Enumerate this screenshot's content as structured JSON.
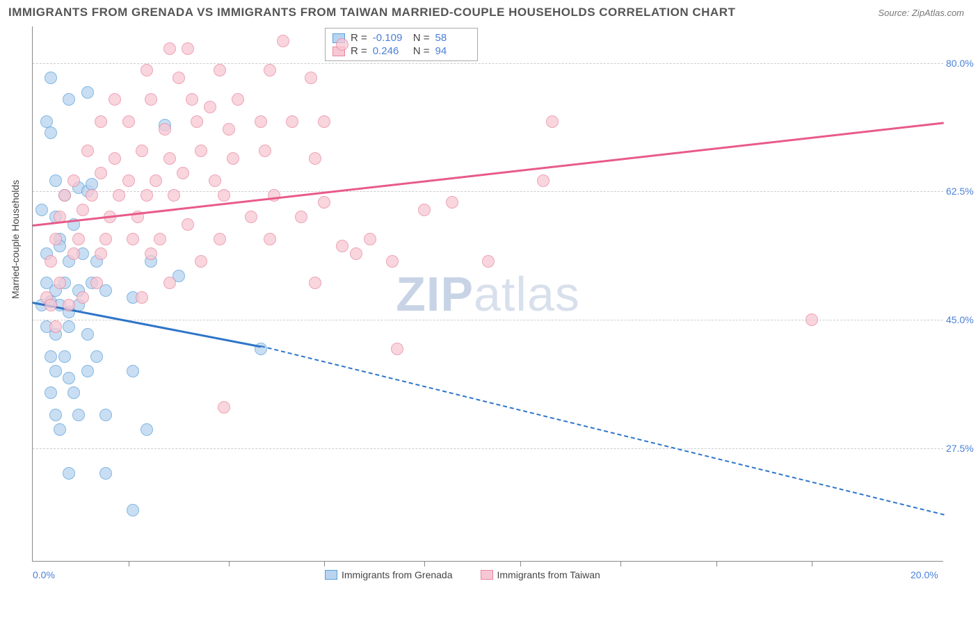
{
  "title": "IMMIGRANTS FROM GRENADA VS IMMIGRANTS FROM TAIWAN MARRIED-COUPLE HOUSEHOLDS CORRELATION CHART",
  "source": "Source: ZipAtlas.com",
  "ylabel": "Married-couple Households",
  "watermark_a": "ZIP",
  "watermark_b": "atlas",
  "chart": {
    "type": "scatter",
    "xlim": [
      0,
      20
    ],
    "ylim": [
      12,
      85
    ],
    "xticks": [
      0,
      20
    ],
    "xtick_labels": [
      "0.0%",
      "20.0%"
    ],
    "minor_xticks": [
      2.1,
      4.3,
      6.4,
      8.6,
      10.7,
      12.9,
      15.0,
      17.1
    ],
    "yticks": [
      27.5,
      45.0,
      62.5,
      80.0
    ],
    "ytick_labels": [
      "27.5%",
      "45.0%",
      "62.5%",
      "80.0%"
    ],
    "grid_color": "#cccccc",
    "background_color": "#ffffff",
    "series": [
      {
        "name": "Immigrants from Grenada",
        "marker_fill": "#b8d4f0",
        "marker_stroke": "#5a9fd8",
        "line_color": "#2e75c8",
        "r_value": "-0.109",
        "n_value": "58",
        "trend": {
          "x1": 0,
          "y1": 47.5,
          "x2": 5.0,
          "y2": 41.5,
          "x2_dash": 20,
          "y2_dash": 18.5
        },
        "points": [
          [
            0.4,
            78
          ],
          [
            0.3,
            72
          ],
          [
            0.4,
            70.5
          ],
          [
            0.8,
            75
          ],
          [
            1.2,
            76
          ],
          [
            2.9,
            71.5
          ],
          [
            0.5,
            64
          ],
          [
            0.7,
            62
          ],
          [
            1.0,
            63
          ],
          [
            1.2,
            62.5
          ],
          [
            1.3,
            63.5
          ],
          [
            0.2,
            60
          ],
          [
            0.5,
            59
          ],
          [
            0.9,
            58
          ],
          [
            0.6,
            56
          ],
          [
            0.3,
            54
          ],
          [
            0.6,
            55
          ],
          [
            0.8,
            53
          ],
          [
            1.1,
            54
          ],
          [
            1.4,
            53
          ],
          [
            2.6,
            53
          ],
          [
            3.2,
            51
          ],
          [
            0.3,
            50
          ],
          [
            0.5,
            49
          ],
          [
            0.7,
            50
          ],
          [
            1.0,
            49
          ],
          [
            1.3,
            50
          ],
          [
            1.6,
            49
          ],
          [
            2.2,
            48
          ],
          [
            0.2,
            47
          ],
          [
            0.4,
            47.5
          ],
          [
            0.6,
            47
          ],
          [
            0.8,
            46
          ],
          [
            1.0,
            47
          ],
          [
            0.3,
            44
          ],
          [
            0.5,
            43
          ],
          [
            0.8,
            44
          ],
          [
            1.2,
            43
          ],
          [
            0.4,
            40
          ],
          [
            0.7,
            40
          ],
          [
            1.4,
            40
          ],
          [
            5.0,
            41
          ],
          [
            0.5,
            38
          ],
          [
            0.8,
            37
          ],
          [
            1.2,
            38
          ],
          [
            2.2,
            38
          ],
          [
            0.4,
            35
          ],
          [
            0.9,
            35
          ],
          [
            0.5,
            32
          ],
          [
            1.0,
            32
          ],
          [
            1.6,
            32
          ],
          [
            0.6,
            30
          ],
          [
            2.5,
            30
          ],
          [
            0.8,
            24
          ],
          [
            1.6,
            24
          ],
          [
            2.2,
            19
          ]
        ]
      },
      {
        "name": "Immigrants from Taiwan",
        "marker_fill": "#f7c8d4",
        "marker_stroke": "#e8869f",
        "line_color": "#e85a8a",
        "r_value": "0.246",
        "n_value": "94",
        "trend": {
          "x1": 0,
          "y1": 58,
          "x2": 20,
          "y2": 72
        },
        "points": [
          [
            3.0,
            82
          ],
          [
            3.4,
            82
          ],
          [
            5.5,
            83
          ],
          [
            6.8,
            82.5
          ],
          [
            2.5,
            79
          ],
          [
            3.2,
            78
          ],
          [
            4.1,
            79
          ],
          [
            5.2,
            79
          ],
          [
            6.1,
            78
          ],
          [
            1.8,
            75
          ],
          [
            2.6,
            75
          ],
          [
            3.5,
            75
          ],
          [
            3.9,
            74
          ],
          [
            4.5,
            75
          ],
          [
            1.5,
            72
          ],
          [
            2.1,
            72
          ],
          [
            2.9,
            71
          ],
          [
            3.6,
            72
          ],
          [
            4.3,
            71
          ],
          [
            5.0,
            72
          ],
          [
            5.7,
            72
          ],
          [
            6.4,
            72
          ],
          [
            11.4,
            72
          ],
          [
            1.2,
            68
          ],
          [
            1.8,
            67
          ],
          [
            2.4,
            68
          ],
          [
            3.0,
            67
          ],
          [
            3.7,
            68
          ],
          [
            4.4,
            67
          ],
          [
            5.1,
            68
          ],
          [
            6.2,
            67
          ],
          [
            0.9,
            64
          ],
          [
            1.5,
            65
          ],
          [
            2.1,
            64
          ],
          [
            2.7,
            64
          ],
          [
            3.3,
            65
          ],
          [
            4.0,
            64
          ],
          [
            11.2,
            64
          ],
          [
            0.7,
            62
          ],
          [
            1.3,
            62
          ],
          [
            1.9,
            62
          ],
          [
            2.5,
            62
          ],
          [
            3.1,
            62
          ],
          [
            4.2,
            62
          ],
          [
            5.3,
            62
          ],
          [
            6.4,
            61
          ],
          [
            0.6,
            59
          ],
          [
            1.1,
            60
          ],
          [
            1.7,
            59
          ],
          [
            2.3,
            59
          ],
          [
            3.4,
            58
          ],
          [
            4.8,
            59
          ],
          [
            5.9,
            59
          ],
          [
            8.6,
            60
          ],
          [
            9.2,
            61
          ],
          [
            0.5,
            56
          ],
          [
            1.0,
            56
          ],
          [
            1.6,
            56
          ],
          [
            2.2,
            56
          ],
          [
            2.8,
            56
          ],
          [
            4.1,
            56
          ],
          [
            5.2,
            56
          ],
          [
            6.8,
            55
          ],
          [
            7.4,
            56
          ],
          [
            0.4,
            53
          ],
          [
            0.9,
            54
          ],
          [
            1.5,
            54
          ],
          [
            2.6,
            54
          ],
          [
            3.7,
            53
          ],
          [
            7.1,
            54
          ],
          [
            7.9,
            53
          ],
          [
            10.0,
            53
          ],
          [
            0.6,
            50
          ],
          [
            1.4,
            50
          ],
          [
            3.0,
            50
          ],
          [
            6.2,
            50
          ],
          [
            0.3,
            48
          ],
          [
            1.1,
            48
          ],
          [
            2.4,
            48
          ],
          [
            0.4,
            47
          ],
          [
            0.8,
            47
          ],
          [
            17.1,
            45
          ],
          [
            0.5,
            44
          ],
          [
            8.0,
            41
          ],
          [
            4.2,
            33
          ]
        ]
      }
    ]
  }
}
